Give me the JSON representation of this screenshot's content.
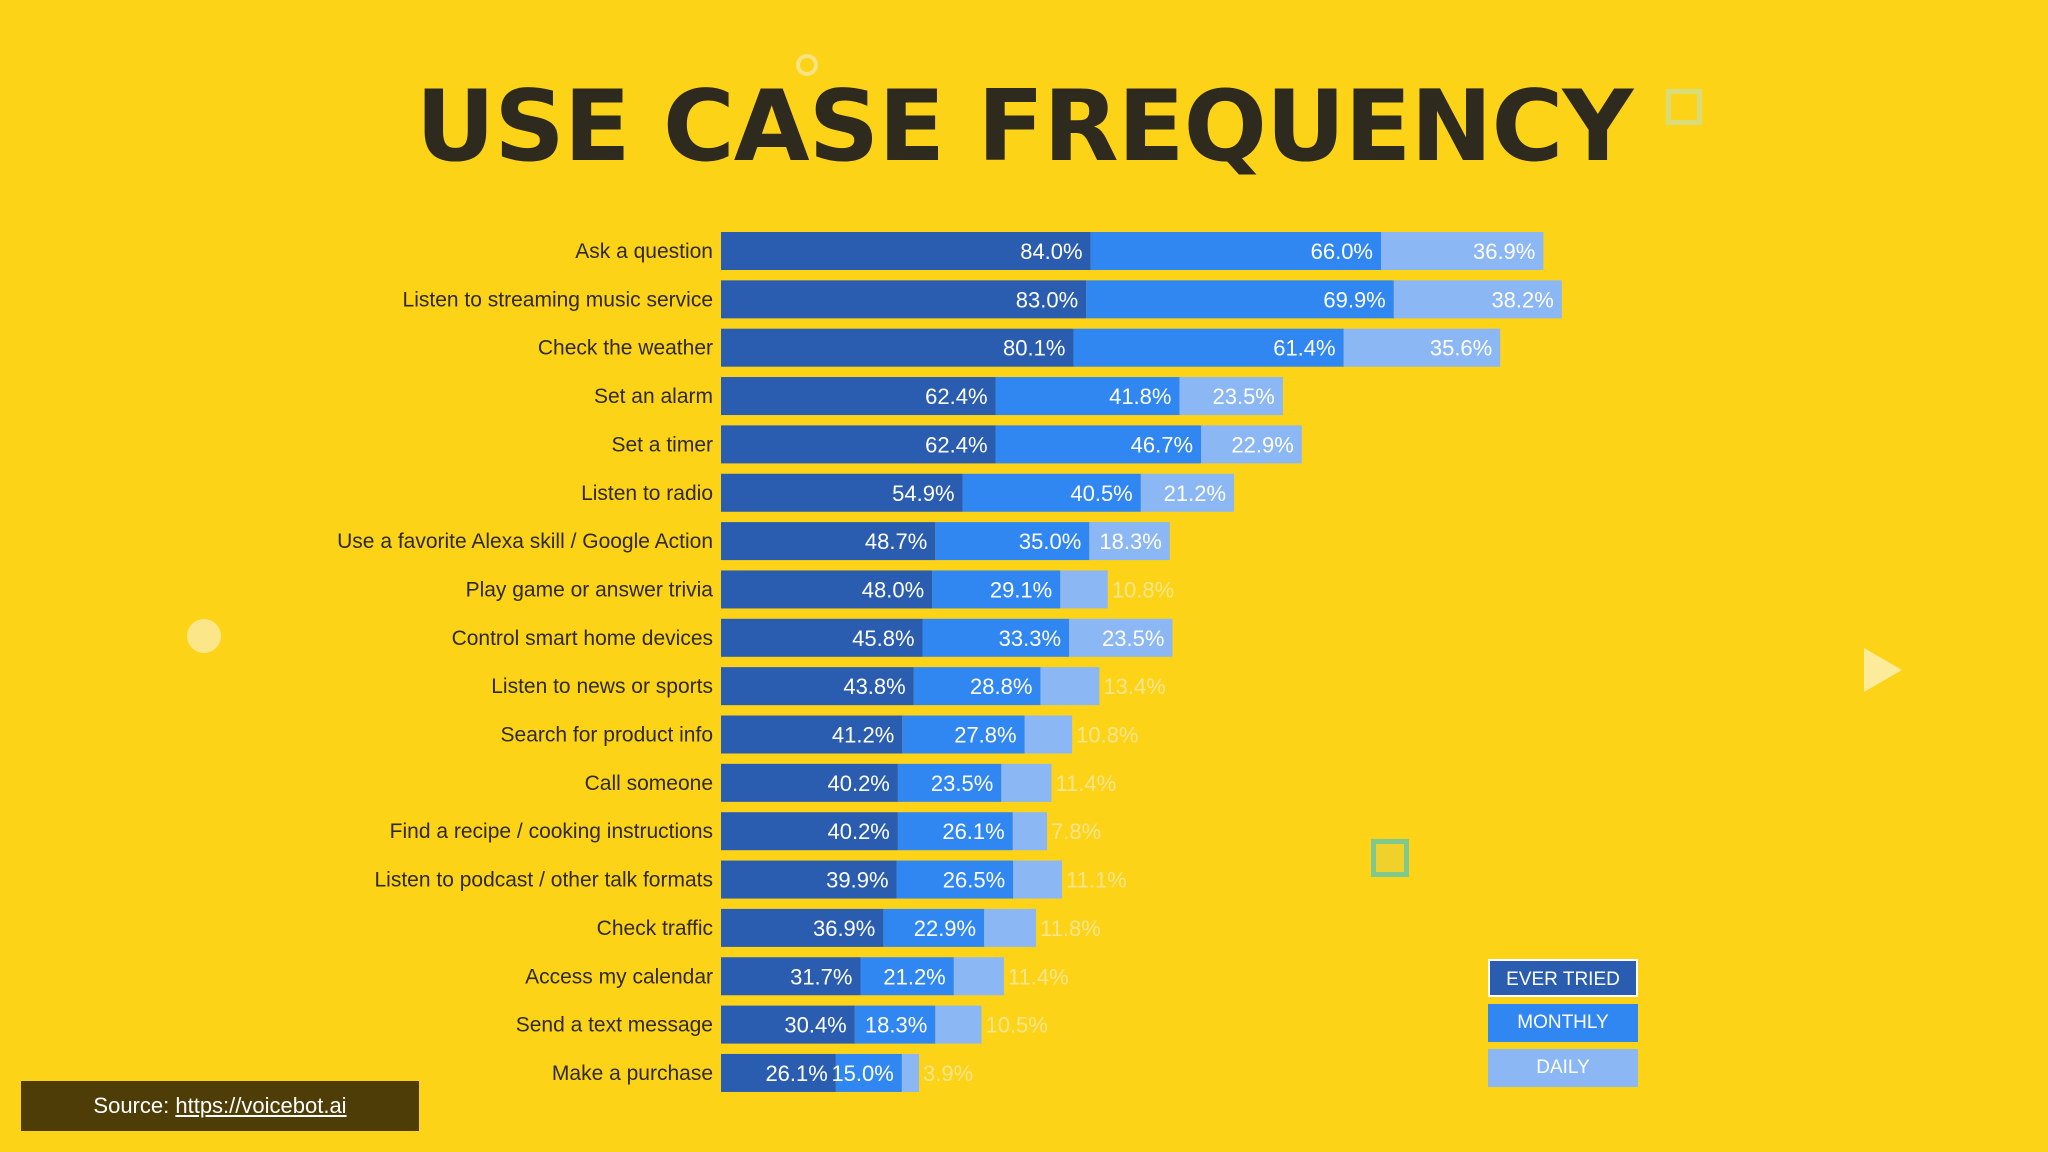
{
  "title": "USE CASE FREQUENCY",
  "colors": {
    "background": "#FDD318",
    "ever_tried": "#2A5DB0",
    "monthly": "#3187F2",
    "daily": "#8BB7F4",
    "title": "#2E2A1E",
    "source_bg": "#4F3D07"
  },
  "legend": {
    "ever_tried": "EVER TRIED",
    "monthly": "MONTHLY",
    "daily": "DAILY"
  },
  "source": {
    "prefix": "Source:",
    "link": "https://voicebot.ai"
  },
  "chart_data": {
    "type": "bar",
    "orientation": "horizontal",
    "stacked": true,
    "title": "USE CASE FREQUENCY",
    "categories": [
      "Ask a question",
      "Listen to streaming music service",
      "Check the weather",
      "Set an alarm",
      "Set a timer",
      "Listen to radio",
      "Use a favorite Alexa skill / Google Action",
      "Play game or answer trivia",
      "Control smart home devices",
      "Listen to news or sports",
      "Search for product info",
      "Call someone",
      "Find a recipe / cooking instructions",
      "Listen to podcast / other talk formats",
      "Check traffic",
      "Access my calendar",
      "Send a text message",
      "Make a purchase"
    ],
    "series": [
      {
        "name": "EVER TRIED",
        "values": [
          84.0,
          83.0,
          80.1,
          62.4,
          62.4,
          54.9,
          48.7,
          48.0,
          45.8,
          43.8,
          41.2,
          40.2,
          40.2,
          39.9,
          36.9,
          31.7,
          30.4,
          26.1
        ]
      },
      {
        "name": "MONTHLY",
        "values": [
          66.0,
          69.9,
          61.4,
          41.8,
          46.7,
          40.5,
          35.0,
          29.1,
          33.3,
          28.8,
          27.8,
          23.5,
          26.1,
          26.5,
          22.9,
          21.2,
          18.3,
          15.0
        ]
      },
      {
        "name": "DAILY",
        "values": [
          36.9,
          38.2,
          35.6,
          23.5,
          22.9,
          21.2,
          18.3,
          10.8,
          23.5,
          13.4,
          10.8,
          11.4,
          7.8,
          11.1,
          11.8,
          11.4,
          10.5,
          3.9
        ]
      }
    ],
    "value_labels": [
      [
        "84.0%",
        "66.0%",
        "36.9%"
      ],
      [
        "83.0%",
        "69.9%",
        "38.2%"
      ],
      [
        "80.1%",
        "61.4%",
        "35.6%"
      ],
      [
        "62.4%",
        "41.8%",
        "23.5%"
      ],
      [
        "62.4%",
        "46.7%",
        "22.9%"
      ],
      [
        "54.9%",
        "40.5%",
        "21.2%"
      ],
      [
        "48.7%",
        "35.0%",
        "18.3%"
      ],
      [
        "48.0%",
        "29.1%",
        "10.8%"
      ],
      [
        "45.8%",
        "33.3%",
        "23.5%"
      ],
      [
        "43.8%",
        "28.8%",
        "13.4%"
      ],
      [
        "41.2%",
        "27.8%",
        "10.8%"
      ],
      [
        "40.2%",
        "23.5%",
        "11.4%"
      ],
      [
        "40.2%",
        "26.1%",
        "7.8%"
      ],
      [
        "39.9%",
        "26.5%",
        "11.1%"
      ],
      [
        "36.9%",
        "22.9%",
        "11.8%"
      ],
      [
        "31.7%",
        "21.2%",
        "11.4%"
      ],
      [
        "30.4%",
        "18.3%",
        "10.5%"
      ],
      [
        "26.1%",
        "15.0%",
        "3.9%"
      ]
    ],
    "xlabel": "",
    "ylabel": "",
    "legend_position": "bottom-right"
  }
}
